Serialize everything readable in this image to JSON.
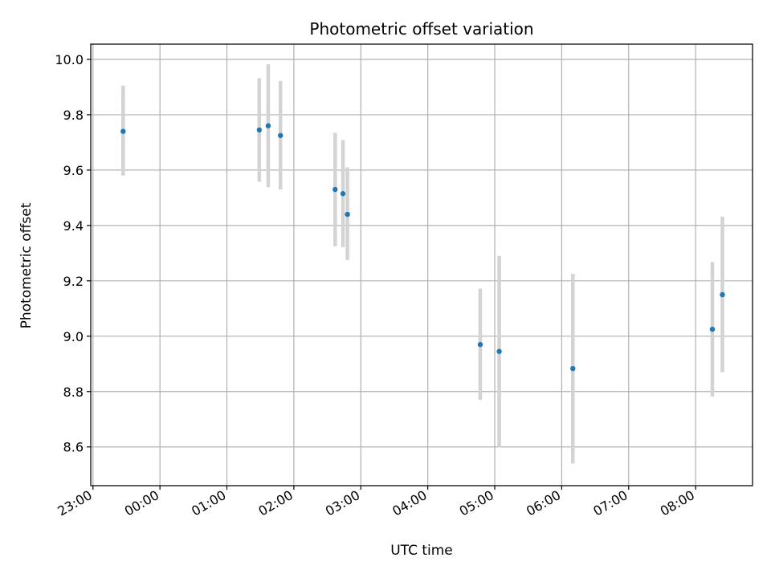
{
  "chart_data": {
    "type": "scatter",
    "title": "Photometric offset variation",
    "xlabel": "UTC time",
    "ylabel": "Photometric offset",
    "grid": true,
    "xlim": [
      "22:58",
      "08:51"
    ],
    "ylim": [
      8.46,
      10.055
    ],
    "x_ticks": [
      "23:00",
      "00:00",
      "01:00",
      "02:00",
      "03:00",
      "04:00",
      "05:00",
      "06:00",
      "07:00",
      "08:00"
    ],
    "y_ticks": [
      "8.6",
      "8.8",
      "9.0",
      "9.2",
      "9.4",
      "9.6",
      "9.8",
      "10.0"
    ],
    "colors": {
      "point": "#1f77b4",
      "errorbar": "#d3d3d3",
      "grid": "#b0b0b0"
    },
    "series": [
      {
        "points": [
          {
            "x": "23:27",
            "y": 9.74,
            "ylow": 9.58,
            "yhigh": 9.905
          },
          {
            "x": "01:29",
            "y": 9.745,
            "ylow": 9.558,
            "yhigh": 9.932
          },
          {
            "x": "01:37",
            "y": 9.76,
            "ylow": 9.538,
            "yhigh": 9.982
          },
          {
            "x": "01:48",
            "y": 9.725,
            "ylow": 9.53,
            "yhigh": 9.922
          },
          {
            "x": "02:37",
            "y": 9.53,
            "ylow": 9.325,
            "yhigh": 9.735
          },
          {
            "x": "02:44",
            "y": 9.515,
            "ylow": 9.322,
            "yhigh": 9.708
          },
          {
            "x": "02:48",
            "y": 9.44,
            "ylow": 9.275,
            "yhigh": 9.61
          },
          {
            "x": "04:47",
            "y": 8.97,
            "ylow": 8.77,
            "yhigh": 9.172
          },
          {
            "x": "05:04",
            "y": 8.945,
            "ylow": 8.6,
            "yhigh": 9.29
          },
          {
            "x": "06:10",
            "y": 8.883,
            "ylow": 8.54,
            "yhigh": 9.225
          },
          {
            "x": "08:15",
            "y": 9.025,
            "ylow": 8.782,
            "yhigh": 9.268
          },
          {
            "x": "08:24",
            "y": 9.15,
            "ylow": 8.87,
            "yhigh": 9.432
          }
        ]
      }
    ]
  }
}
